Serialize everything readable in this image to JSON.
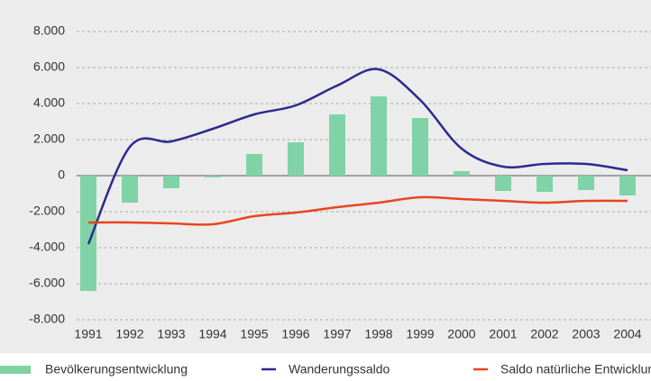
{
  "chart_data": {
    "type": "bar_line",
    "categories": [
      "1991",
      "1992",
      "1993",
      "1994",
      "1995",
      "1996",
      "1997",
      "1998",
      "1999",
      "2000",
      "2001",
      "2002",
      "2003",
      "2004"
    ],
    "series": [
      {
        "name": "Bevölkerungsentwicklung",
        "type": "bar",
        "color": "#7fd3a6",
        "values": [
          -6400,
          -1500,
          -700,
          -100,
          1200,
          1850,
          3400,
          4400,
          3200,
          250,
          -850,
          -900,
          -800,
          -1100
        ]
      },
      {
        "name": "Wanderungssaldo",
        "type": "line",
        "color": "#2b2a8f",
        "values": [
          -3800,
          1600,
          1900,
          2600,
          3400,
          3900,
          5000,
          5900,
          4200,
          1500,
          500,
          650,
          650,
          300
        ]
      },
      {
        "name": "Saldo natürliche Entwicklung",
        "type": "line",
        "color": "#e8451e",
        "values": [
          -2600,
          -2600,
          -2650,
          -2700,
          -2250,
          -2050,
          -1750,
          -1500,
          -1200,
          -1300,
          -1400,
          -1500,
          -1400,
          -1400
        ]
      }
    ],
    "ylim": [
      -8000,
      8000
    ],
    "yticks": [
      {
        "value": -8000,
        "label": "-8.000"
      },
      {
        "value": -6000,
        "label": "-6.000"
      },
      {
        "value": -4000,
        "label": "-4.000"
      },
      {
        "value": -2000,
        "label": "-2.000"
      },
      0,
      {
        "value": 2000,
        "label": "2.000"
      },
      {
        "value": 4000,
        "label": "4.000"
      },
      {
        "value": 6000,
        "label": "6.000"
      },
      {
        "value": 8000,
        "label": "8.000"
      }
    ],
    "grid": true
  }
}
